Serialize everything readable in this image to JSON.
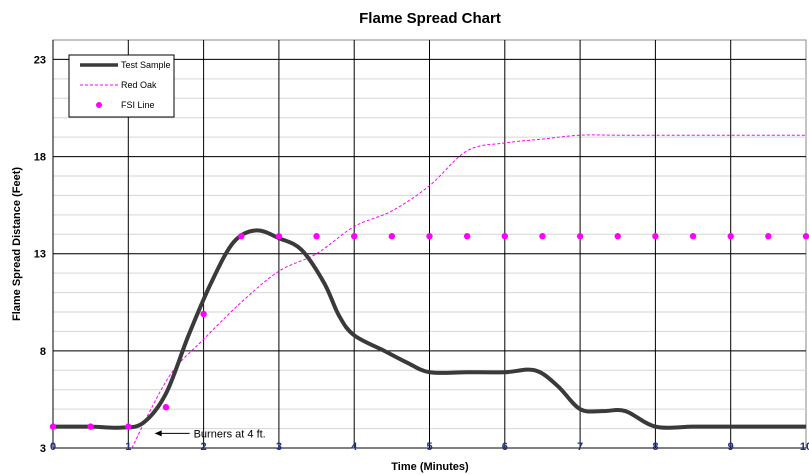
{
  "chart_data": {
    "type": "line",
    "title": "Flame Spread Chart",
    "xlabel": "Time (Minutes)",
    "ylabel": "Flame Spread Distance (Feet)",
    "xlim": [
      0,
      10
    ],
    "ylim": [
      3,
      24
    ],
    "xticks": [
      "0",
      "1",
      "2",
      "3",
      "4",
      "5",
      "6",
      "7",
      "8",
      "9",
      "10"
    ],
    "yticks": [
      "3",
      "8",
      "13",
      "18",
      "23"
    ],
    "grid": true,
    "legend_position": "top-left",
    "series": [
      {
        "name": "Test Sample",
        "style": "solid",
        "color": "#3a3a3a",
        "points": [
          [
            0,
            4.1
          ],
          [
            0.5,
            4.1
          ],
          [
            0.9,
            4.05
          ],
          [
            1.2,
            4.3
          ],
          [
            1.5,
            5.8
          ],
          [
            1.8,
            8.8
          ],
          [
            2.1,
            11.5
          ],
          [
            2.4,
            13.6
          ],
          [
            2.7,
            14.2
          ],
          [
            3.0,
            13.8
          ],
          [
            3.3,
            13.2
          ],
          [
            3.6,
            11.5
          ],
          [
            3.8,
            9.8
          ],
          [
            4.0,
            8.8
          ],
          [
            4.4,
            8.0
          ],
          [
            4.7,
            7.4
          ],
          [
            5.0,
            6.9
          ],
          [
            5.5,
            6.9
          ],
          [
            6.0,
            6.9
          ],
          [
            6.4,
            7.0
          ],
          [
            6.7,
            6.2
          ],
          [
            7.0,
            5.0
          ],
          [
            7.3,
            4.9
          ],
          [
            7.6,
            4.9
          ],
          [
            8.0,
            4.1
          ],
          [
            8.5,
            4.1
          ],
          [
            9.0,
            4.1
          ],
          [
            9.5,
            4.1
          ],
          [
            10,
            4.1
          ]
        ]
      },
      {
        "name": "Red Oak",
        "style": "dashed",
        "color": "#ff00ff",
        "points": [
          [
            1.05,
            3.0
          ],
          [
            1.3,
            5.0
          ],
          [
            1.6,
            7.0
          ],
          [
            2.0,
            8.6
          ],
          [
            2.5,
            10.5
          ],
          [
            3.0,
            12.1
          ],
          [
            3.5,
            13.0
          ],
          [
            4.0,
            14.4
          ],
          [
            4.5,
            15.2
          ],
          [
            5.0,
            16.5
          ],
          [
            5.5,
            18.3
          ],
          [
            6.0,
            18.7
          ],
          [
            6.5,
            18.9
          ],
          [
            7.0,
            19.1
          ],
          [
            7.5,
            19.1
          ],
          [
            8.0,
            19.1
          ],
          [
            9.0,
            19.1
          ],
          [
            10,
            19.1
          ]
        ]
      },
      {
        "name": "FSI Line",
        "style": "markers",
        "color": "#ff00ff",
        "points": [
          [
            0,
            4.1
          ],
          [
            0.5,
            4.1
          ],
          [
            1.0,
            4.1
          ],
          [
            1.5,
            5.1
          ],
          [
            2.0,
            9.9
          ],
          [
            2.5,
            13.9
          ],
          [
            3.0,
            13.9
          ],
          [
            3.5,
            13.9
          ],
          [
            4.0,
            13.9
          ],
          [
            4.5,
            13.9
          ],
          [
            5.0,
            13.9
          ],
          [
            5.5,
            13.9
          ],
          [
            6.0,
            13.9
          ],
          [
            6.5,
            13.9
          ],
          [
            7.0,
            13.9
          ],
          [
            7.5,
            13.9
          ],
          [
            8.0,
            13.9
          ],
          [
            8.5,
            13.9
          ],
          [
            9.0,
            13.9
          ],
          [
            9.5,
            13.9
          ],
          [
            10,
            13.9
          ]
        ]
      }
    ],
    "annotations": [
      {
        "text": "Burners at 4 ft.",
        "x": 2.65,
        "y": 3.7,
        "arrow_from": 2.0,
        "arrow_to": 1.35
      }
    ]
  }
}
